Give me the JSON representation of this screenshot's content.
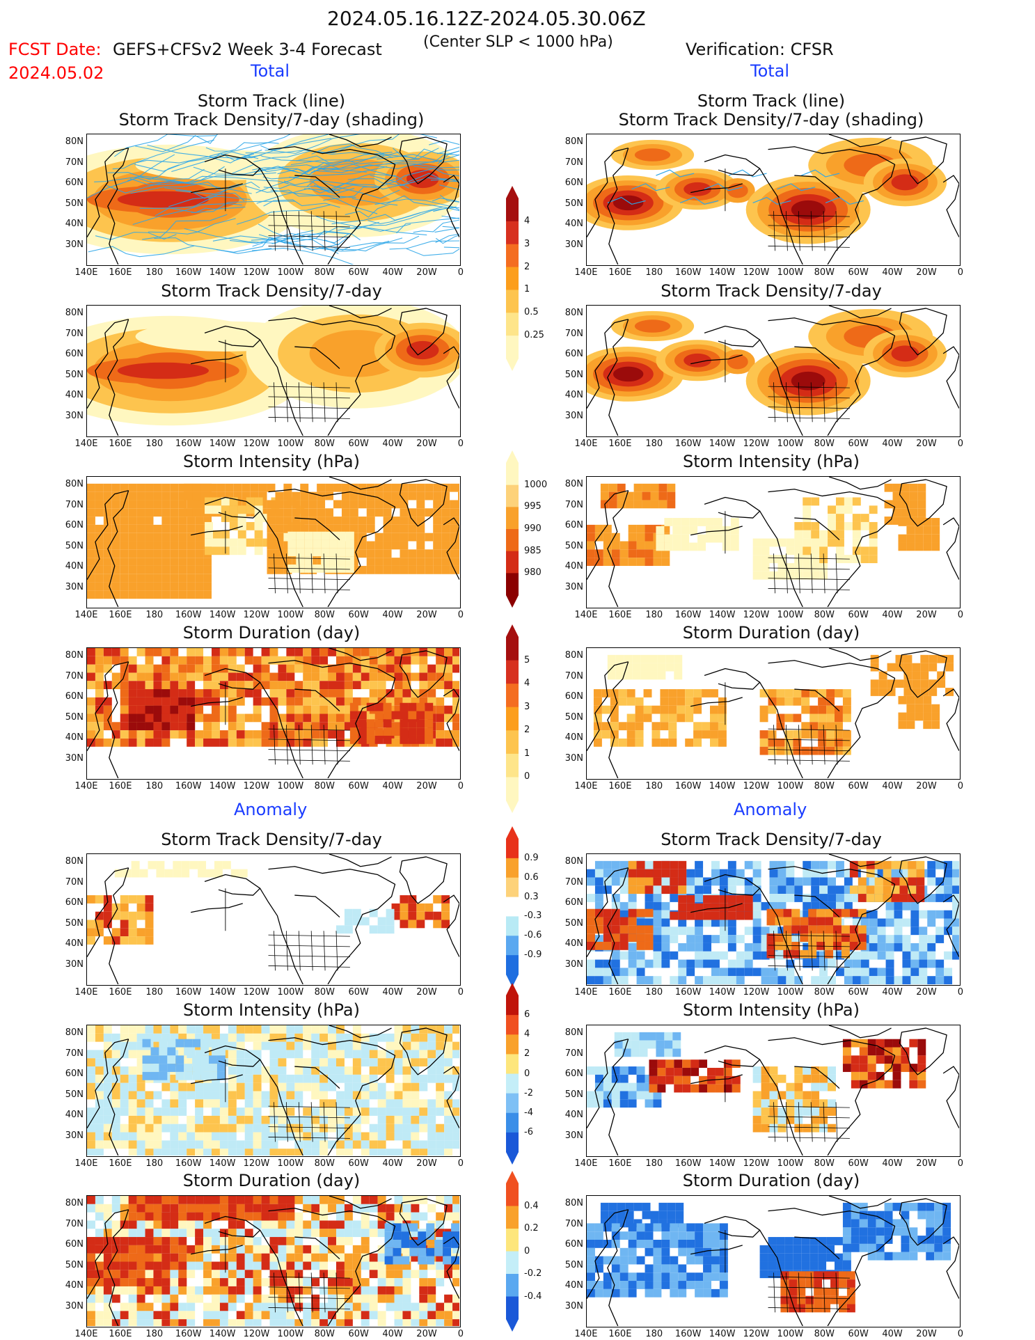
{
  "header": {
    "period": "2024.05.16.12Z-2024.05.30.06Z",
    "fcst_date_label": "FCST Date:",
    "fcst_date_value": "2024.05.02",
    "model": "GEFS+CFSv2 Week 3-4 Forecast",
    "criterion": "(Center SLP < 1000 hPa)",
    "verification": "Verification: CFSR"
  },
  "sections": {
    "total_left": "Total",
    "total_right": "Total",
    "anomaly_left": "Anomaly",
    "anomaly_right": "Anomaly"
  },
  "panel_titles": {
    "track_line": "Storm Track (line)",
    "track_shading": "Storm Track Density/7-day (shading)",
    "density": "Storm Track Density/7-day",
    "intensity": "Storm Intensity (hPa)",
    "duration": "Storm Duration (day)"
  },
  "axes": {
    "lat": [
      "80N",
      "70N",
      "60N",
      "50N",
      "40N",
      "30N"
    ],
    "lon": [
      "140E",
      "160E",
      "180",
      "160W",
      "140W",
      "120W",
      "100W",
      "80W",
      "60W",
      "40W",
      "20W",
      "0"
    ]
  },
  "colorbars": {
    "density": {
      "labels": [
        "4",
        "3",
        "2",
        "1",
        "0.5",
        "0.25"
      ],
      "colors": [
        "#a50f0f",
        "#d7301f",
        "#f46d20",
        "#fc9e1c",
        "#fdc44e",
        "#fee58a",
        "#fff7c0"
      ]
    },
    "intensity": {
      "labels": [
        "1000",
        "995",
        "990",
        "985",
        "980"
      ],
      "colors": [
        "#fff7c0",
        "#fdd27a",
        "#f9a12b",
        "#ee6a18",
        "#d42c16",
        "#8b0000"
      ]
    },
    "duration": {
      "labels": [
        "5",
        "4",
        "3",
        "2",
        "1",
        "0"
      ],
      "colors": [
        "#a50f0f",
        "#d7301f",
        "#f46d20",
        "#fc9e1c",
        "#fdc44e",
        "#fee58a",
        "#fff7c0"
      ]
    },
    "anom_density": {
      "labels": [
        "0.9",
        "0.6",
        "0.3",
        "-0.3",
        "-0.6",
        "-0.9"
      ],
      "colors": [
        "#e8321a",
        "#f9a12b",
        "#fdd27a",
        "#ffffff",
        "#b8eaf5",
        "#5aa8f0",
        "#1e6ee0"
      ]
    },
    "anom_intensity": {
      "labels": [
        "6",
        "4",
        "2",
        "0",
        "-2",
        "-4",
        "-6"
      ],
      "colors": [
        "#c0140a",
        "#f05020",
        "#f9a12b",
        "#fde67c",
        "#c4eef8",
        "#7ec0f5",
        "#3a8ee8",
        "#1a58d8"
      ]
    },
    "anom_duration": {
      "labels": [
        "0.4",
        "0.2",
        "0",
        "-0.2",
        "-0.4"
      ],
      "colors": [
        "#f05020",
        "#f9a12b",
        "#fde67c",
        "#c4eef8",
        "#5aa8f0",
        "#1a58d8"
      ]
    }
  },
  "map_colors": {
    "low": "#fff7c0",
    "mid": "#fdc44e",
    "orange": "#f9a12b",
    "deep": "#ee6a18",
    "red": "#d42c16",
    "darkred": "#9b0b0b",
    "lightblue": "#bfeaf6",
    "midblue": "#6fb6f2",
    "blue": "#2171e0",
    "track": "#2ea6e8"
  }
}
